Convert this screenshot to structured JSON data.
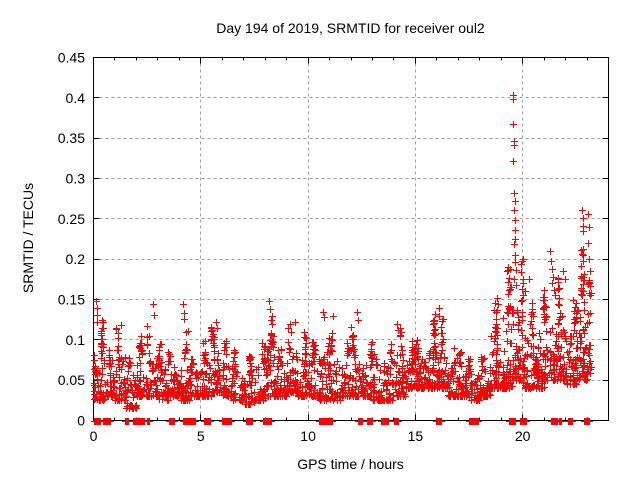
{
  "chart_data": {
    "type": "scatter",
    "title": "Day 194 of 2019, SRMTID for receiver oul2",
    "xlabel": "GPS time / hours",
    "ylabel": "SRMTID / TECUs",
    "xlim": [
      0,
      24
    ],
    "ylim": [
      0,
      0.45
    ],
    "xticks_major": [
      0,
      5,
      10,
      15,
      20
    ],
    "xtick_labels": [
      "0",
      "5",
      "10",
      "15",
      "20"
    ],
    "xtick_minor_step": 1,
    "yticks": [
      0,
      0.05,
      0.1,
      0.15,
      0.2,
      0.25,
      0.3,
      0.35,
      0.4,
      0.45
    ],
    "ytick_labels": [
      "0",
      "0.05",
      "0.1",
      "0.15",
      "0.2",
      "0.25",
      "0.3",
      "0.35",
      "0.4",
      "0.45"
    ],
    "grid": "dashed",
    "legend": "none",
    "marker": "plus",
    "marker_size": 7,
    "marker_color": "#ff0000",
    "axis_color": "#000000",
    "grid_color": "#a0a0a0",
    "background_color": "#ffffff",
    "series_name": "SRMTID",
    "seed": 1947194,
    "cloud_bins": [
      [
        0.0,
        0.5,
        60,
        0.025,
        0.125
      ],
      [
        0.5,
        1.0,
        45,
        0.03,
        0.09
      ],
      [
        1.0,
        1.5,
        45,
        0.025,
        0.115
      ],
      [
        1.5,
        2.0,
        40,
        0.015,
        0.085
      ],
      [
        2.0,
        2.5,
        45,
        0.03,
        0.11
      ],
      [
        2.5,
        3.0,
        45,
        0.03,
        0.12
      ],
      [
        3.0,
        3.5,
        45,
        0.025,
        0.095
      ],
      [
        3.5,
        4.0,
        40,
        0.03,
        0.09
      ],
      [
        4.0,
        4.5,
        45,
        0.025,
        0.12
      ],
      [
        4.5,
        5.0,
        40,
        0.03,
        0.08
      ],
      [
        5.0,
        5.5,
        45,
        0.03,
        0.1
      ],
      [
        5.5,
        6.0,
        50,
        0.035,
        0.12
      ],
      [
        6.0,
        6.5,
        45,
        0.03,
        0.1
      ],
      [
        6.5,
        7.0,
        40,
        0.025,
        0.09
      ],
      [
        7.0,
        7.5,
        40,
        0.02,
        0.08
      ],
      [
        7.5,
        8.0,
        40,
        0.025,
        0.1
      ],
      [
        8.0,
        8.5,
        50,
        0.03,
        0.13
      ],
      [
        8.5,
        9.0,
        45,
        0.03,
        0.1
      ],
      [
        9.0,
        9.5,
        50,
        0.035,
        0.12
      ],
      [
        9.5,
        10.0,
        50,
        0.03,
        0.11
      ],
      [
        10.0,
        10.5,
        45,
        0.03,
        0.1
      ],
      [
        10.5,
        11.0,
        45,
        0.025,
        0.115
      ],
      [
        11.0,
        11.5,
        45,
        0.025,
        0.115
      ],
      [
        11.5,
        12.0,
        40,
        0.03,
        0.1
      ],
      [
        12.0,
        12.5,
        50,
        0.03,
        0.12
      ],
      [
        12.5,
        13.0,
        45,
        0.03,
        0.1
      ],
      [
        13.0,
        13.5,
        40,
        0.025,
        0.09
      ],
      [
        13.5,
        14.0,
        40,
        0.025,
        0.105
      ],
      [
        14.0,
        14.5,
        45,
        0.03,
        0.115
      ],
      [
        14.5,
        15.0,
        50,
        0.04,
        0.1
      ],
      [
        15.0,
        15.5,
        50,
        0.04,
        0.1
      ],
      [
        15.5,
        16.0,
        55,
        0.04,
        0.125
      ],
      [
        16.0,
        16.5,
        55,
        0.04,
        0.13
      ],
      [
        16.5,
        17.0,
        45,
        0.03,
        0.09
      ],
      [
        17.0,
        17.5,
        45,
        0.03,
        0.085
      ],
      [
        17.5,
        18.0,
        40,
        0.025,
        0.08
      ],
      [
        18.0,
        18.5,
        45,
        0.03,
        0.09
      ],
      [
        18.5,
        19.0,
        55,
        0.04,
        0.15
      ],
      [
        19.0,
        19.5,
        60,
        0.04,
        0.19
      ],
      [
        19.5,
        20.0,
        65,
        0.05,
        0.21
      ],
      [
        20.0,
        20.5,
        50,
        0.04,
        0.15
      ],
      [
        20.5,
        21.0,
        50,
        0.04,
        0.115
      ],
      [
        21.0,
        21.5,
        55,
        0.05,
        0.17
      ],
      [
        21.5,
        22.0,
        55,
        0.05,
        0.185
      ],
      [
        22.0,
        22.5,
        55,
        0.045,
        0.15
      ],
      [
        22.5,
        23.0,
        60,
        0.05,
        0.21
      ],
      [
        23.0,
        23.2,
        25,
        0.05,
        0.2
      ]
    ],
    "outliers": [
      [
        0.12,
        0.148
      ],
      [
        0.14,
        0.14
      ],
      [
        0.16,
        0.131
      ],
      [
        0.18,
        0.122
      ],
      [
        1.3,
        0.118
      ],
      [
        2.78,
        0.145
      ],
      [
        2.82,
        0.131
      ],
      [
        4.18,
        0.145
      ],
      [
        4.22,
        0.133
      ],
      [
        4.2,
        0.126
      ],
      [
        5.7,
        0.122
      ],
      [
        5.75,
        0.115
      ],
      [
        8.2,
        0.148
      ],
      [
        8.24,
        0.138
      ],
      [
        8.28,
        0.125
      ],
      [
        9.4,
        0.122
      ],
      [
        10.68,
        0.135
      ],
      [
        10.72,
        0.128
      ],
      [
        11.15,
        0.13
      ],
      [
        12.28,
        0.135
      ],
      [
        12.33,
        0.124
      ],
      [
        14.15,
        0.12
      ],
      [
        14.18,
        0.112
      ],
      [
        15.9,
        0.132
      ],
      [
        16.08,
        0.14
      ],
      [
        16.12,
        0.13
      ],
      [
        18.82,
        0.152
      ],
      [
        18.85,
        0.145
      ],
      [
        19.3,
        0.19
      ],
      [
        19.32,
        0.186
      ],
      [
        19.45,
        0.165
      ],
      [
        19.54,
        0.403
      ],
      [
        19.56,
        0.398
      ],
      [
        19.55,
        0.368
      ],
      [
        19.58,
        0.347
      ],
      [
        19.6,
        0.341
      ],
      [
        19.57,
        0.322
      ],
      [
        19.61,
        0.282
      ],
      [
        19.63,
        0.272
      ],
      [
        19.6,
        0.261
      ],
      [
        19.64,
        0.248
      ],
      [
        19.62,
        0.236
      ],
      [
        19.66,
        0.225
      ],
      [
        19.59,
        0.219
      ],
      [
        19.65,
        0.205
      ],
      [
        19.63,
        0.196
      ],
      [
        19.67,
        0.186
      ],
      [
        19.61,
        0.176
      ],
      [
        19.68,
        0.168
      ],
      [
        20.1,
        0.16
      ],
      [
        20.28,
        0.176
      ],
      [
        21.28,
        0.21
      ],
      [
        21.33,
        0.198
      ],
      [
        21.38,
        0.188
      ],
      [
        21.36,
        0.17
      ],
      [
        21.43,
        0.178
      ],
      [
        21.48,
        0.162
      ],
      [
        21.52,
        0.155
      ],
      [
        21.9,
        0.185
      ],
      [
        21.95,
        0.175
      ],
      [
        22.35,
        0.15
      ],
      [
        22.7,
        0.211
      ],
      [
        22.78,
        0.261
      ],
      [
        22.8,
        0.251
      ],
      [
        22.79,
        0.241
      ],
      [
        22.83,
        0.235
      ],
      [
        22.81,
        0.212
      ],
      [
        22.84,
        0.182
      ],
      [
        22.86,
        0.174
      ],
      [
        22.82,
        0.161
      ],
      [
        23.05,
        0.256
      ],
      [
        23.08,
        0.24
      ],
      [
        23.06,
        0.22
      ],
      [
        23.1,
        0.2
      ],
      [
        23.12,
        0.185
      ],
      [
        23.07,
        0.17
      ]
    ],
    "zero_runs": [
      [
        0.05,
        0.3,
        20
      ],
      [
        0.45,
        0.75,
        26
      ],
      [
        1.45,
        1.6,
        12
      ],
      [
        1.85,
        2.35,
        28
      ],
      [
        2.5,
        2.6,
        8
      ],
      [
        3.5,
        3.75,
        18
      ],
      [
        4.15,
        4.75,
        30
      ],
      [
        5.15,
        5.45,
        14
      ],
      [
        6.0,
        6.4,
        20
      ],
      [
        7.1,
        7.4,
        12
      ],
      [
        7.9,
        8.25,
        22
      ],
      [
        10.5,
        10.9,
        30
      ],
      [
        11.0,
        11.1,
        8
      ],
      [
        12.3,
        12.5,
        14
      ],
      [
        12.75,
        13.0,
        16
      ],
      [
        13.4,
        13.7,
        18
      ],
      [
        14.0,
        14.2,
        12
      ],
      [
        15.95,
        16.2,
        18
      ],
      [
        17.5,
        17.9,
        14
      ],
      [
        19.35,
        19.65,
        18
      ],
      [
        19.85,
        20.15,
        14
      ],
      [
        21.3,
        21.6,
        14
      ],
      [
        21.7,
        21.8,
        6
      ],
      [
        22.1,
        22.3,
        10
      ],
      [
        22.85,
        23.1,
        18
      ]
    ]
  }
}
